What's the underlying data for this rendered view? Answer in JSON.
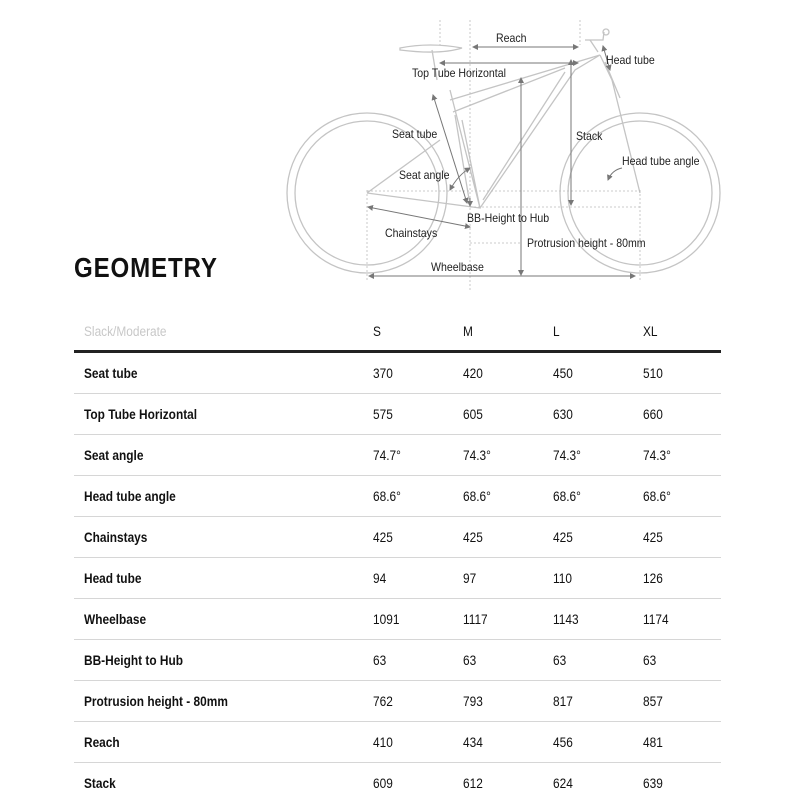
{
  "diagram": {
    "labels": {
      "reach": "Reach",
      "head_tube": "Head tube",
      "top_tube": "Top Tube Horizontal",
      "seat_tube": "Seat tube",
      "stack": "Stack",
      "head_tube_angle": "Head tube angle",
      "seat_angle": "Seat angle",
      "bb_height": "BB-Height to Hub",
      "chainstays": "Chainstays",
      "protrusion": "Protrusion height - 80mm",
      "wheelbase": "Wheelbase"
    }
  },
  "title": "GEOMETRY",
  "table": {
    "header": [
      "Slack/Moderate",
      "S",
      "M",
      "L",
      "XL"
    ],
    "rows": [
      {
        "label": "Seat tube",
        "values": [
          "370",
          "420",
          "450",
          "510"
        ]
      },
      {
        "label": "Top Tube Horizontal",
        "values": [
          "575",
          "605",
          "630",
          "660"
        ]
      },
      {
        "label": "Seat angle",
        "values": [
          "74.7°",
          "74.3°",
          "74.3°",
          "74.3°"
        ]
      },
      {
        "label": "Head tube angle",
        "values": [
          "68.6°",
          "68.6°",
          "68.6°",
          "68.6°"
        ]
      },
      {
        "label": "Chainstays",
        "values": [
          "425",
          "425",
          "425",
          "425"
        ]
      },
      {
        "label": "Head tube",
        "values": [
          "94",
          "97",
          "110",
          "126"
        ]
      },
      {
        "label": "Wheelbase",
        "values": [
          "1091",
          "1117",
          "1143",
          "1174"
        ]
      },
      {
        "label": "BB-Height to Hub",
        "values": [
          "63",
          "63",
          "63",
          "63"
        ]
      },
      {
        "label": "Protrusion height - 80mm",
        "values": [
          "762",
          "793",
          "817",
          "857"
        ]
      },
      {
        "label": "Reach",
        "values": [
          "410",
          "434",
          "456",
          "481"
        ]
      },
      {
        "label": "Stack",
        "values": [
          "609",
          "612",
          "624",
          "639"
        ]
      }
    ]
  }
}
